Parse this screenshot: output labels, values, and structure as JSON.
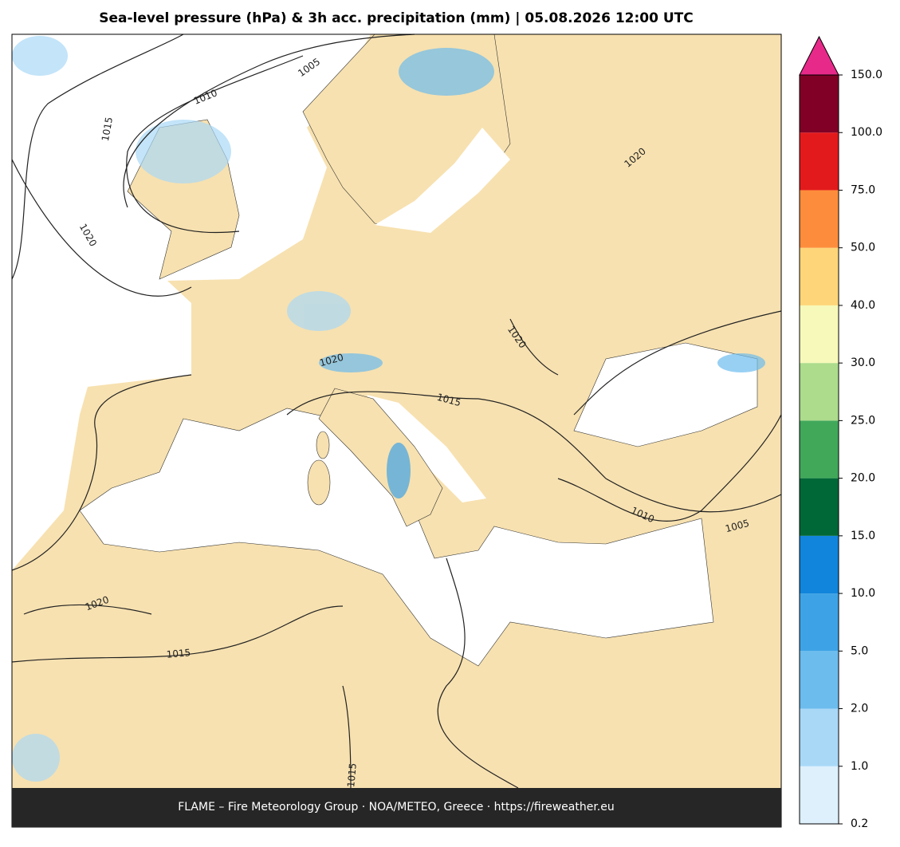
{
  "title": "Sea-level pressure (hPa) & 3h acc. precipitation (mm)  |  05.08.2026 12:00 UTC",
  "footer": "FLAME – Fire Meteorology Group · NOA/METEO, Greece · https://fireweather.eu",
  "colorbar": {
    "levels": [
      0.2,
      {
        "value": 1,
        "label": "1.0"
      },
      {
        "value": 2,
        "label": "2.0"
      },
      {
        "value": 5,
        "label": "5.0"
      },
      {
        "value": 10,
        "label": "10.0"
      },
      {
        "value": 15,
        "label": "15.0"
      },
      {
        "value": 20,
        "label": "20.0"
      },
      {
        "value": 25,
        "label": "25.0"
      },
      {
        "value": 30,
        "label": "30.0"
      },
      {
        "value": 40,
        "label": "40.0"
      },
      {
        "value": 50,
        "label": "50.0"
      },
      {
        "value": 75,
        "label": "75.0"
      },
      {
        "value": 100,
        "label": "100.0"
      },
      {
        "value": 150,
        "label": "150.0"
      }
    ],
    "colors": [
      "#ddf0fc",
      "#a9d8f7",
      "#6cbcee",
      "#3ea3e6",
      "#1185dc",
      "#006837",
      "#41a85a",
      "#acdc8c",
      "#f6f9b9",
      "#fed679",
      "#fd8d3c",
      "#e31a1c",
      "#800026"
    ],
    "extend_color": "#e7298a"
  },
  "isobar_labels": [
    1010,
    1005,
    1015,
    1020,
    1020,
    1020,
    1020,
    1015,
    1010,
    1005,
    1020,
    1015,
    1015
  ]
}
